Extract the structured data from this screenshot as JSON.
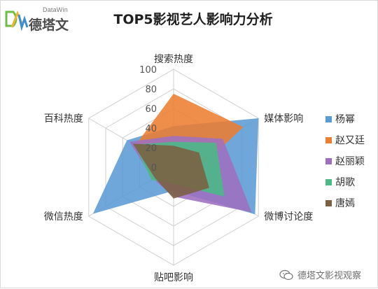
{
  "brand": {
    "name": "德塔文",
    "sub": "DataWin",
    "colors": {
      "d": "#6fbe44",
      "a": "#f2b233",
      "w": "#3d8fd1"
    }
  },
  "watermark": {
    "text": "德塔文影视观察",
    "icon": "wechat-icon"
  },
  "chart_data": {
    "type": "radar",
    "title": "TOP5影视艺人影响力分析",
    "categories": [
      "搜索热度",
      "媒体影响",
      "微博讨论度",
      "贴吧影响",
      "微信热度",
      "百科热度"
    ],
    "rlim": [
      0,
      100
    ],
    "ticks": [
      0,
      20,
      40,
      60,
      80,
      100
    ],
    "grid": true,
    "legend_position": "right",
    "series": [
      {
        "name": "杨幂",
        "color": "#5b9bd5",
        "values": [
          42,
          100,
          96,
          24,
          95,
          55
        ]
      },
      {
        "name": "赵又廷",
        "color": "#ed7d31",
        "values": [
          75,
          82,
          20,
          16,
          25,
          45
        ]
      },
      {
        "name": "赵丽颖",
        "color": "#9e6fc0",
        "values": [
          32,
          58,
          92,
          30,
          24,
          52
        ]
      },
      {
        "name": "胡歌",
        "color": "#4aba86",
        "values": [
          26,
          50,
          60,
          17,
          26,
          46
        ]
      },
      {
        "name": "唐嫣",
        "color": "#7b6042",
        "values": [
          22,
          30,
          42,
          32,
          22,
          48
        ]
      }
    ]
  }
}
